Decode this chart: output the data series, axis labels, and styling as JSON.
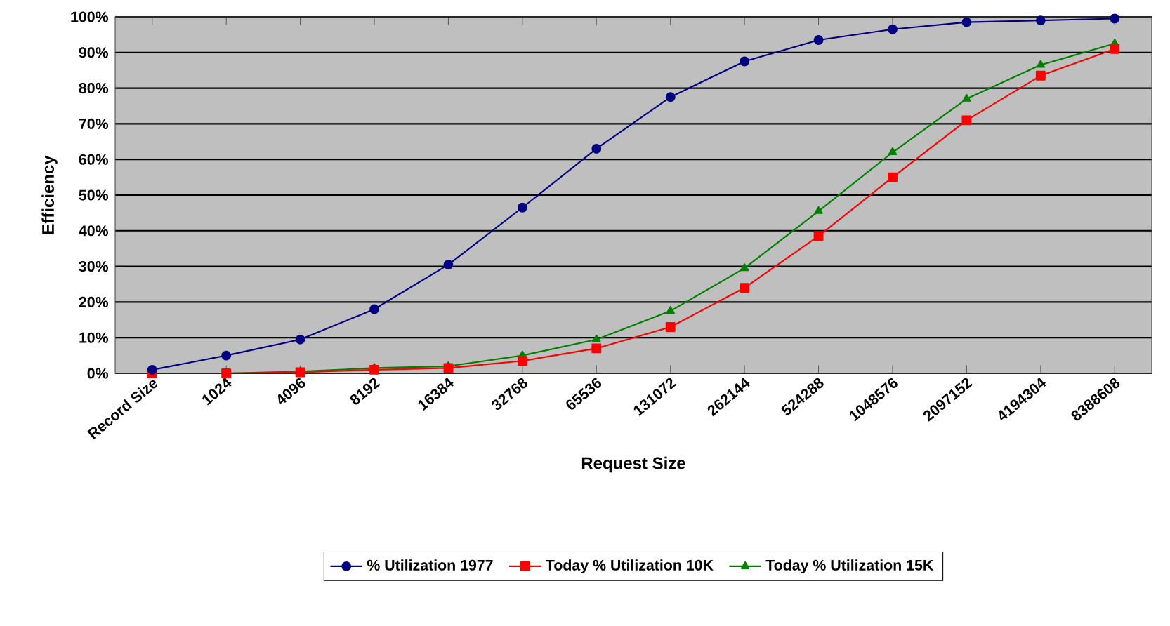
{
  "chart_data": {
    "type": "line",
    "xlabel": "Request Size",
    "ylabel": "Efficiency",
    "categories": [
      "Record Size",
      "1024",
      "4096",
      "8192",
      "16384",
      "32768",
      "65536",
      "131072",
      "262144",
      "524288",
      "1048576",
      "2097152",
      "4194304",
      "8388608"
    ],
    "series": [
      {
        "name": "% Utilization 1977",
        "color": "#000080",
        "marker": "circle",
        "values": [
          1,
          5,
          9.5,
          18,
          30.5,
          46.5,
          63,
          77.5,
          87.5,
          93.5,
          96.5,
          98.5,
          99,
          99.5
        ]
      },
      {
        "name": "Today % Utilization 10K",
        "color": "#ff0000",
        "marker": "square",
        "values": [
          0,
          0,
          0.3,
          1,
          1.5,
          3.5,
          7,
          13,
          24,
          38.5,
          55,
          71,
          83.5,
          91
        ]
      },
      {
        "name": "Today % Utilization 15K",
        "color": "#008000",
        "marker": "triangle",
        "values": [
          0,
          0,
          0.5,
          1.5,
          2,
          5,
          9.5,
          17.5,
          29.5,
          45.5,
          62,
          77,
          86.5,
          92.5
        ]
      }
    ],
    "ylim": [
      0,
      100
    ],
    "yticks": [
      {
        "value": 0,
        "label": "0%"
      },
      {
        "value": 10,
        "label": "10%"
      },
      {
        "value": 20,
        "label": "20%"
      },
      {
        "value": 30,
        "label": "30%"
      },
      {
        "value": 40,
        "label": "40%"
      },
      {
        "value": 50,
        "label": "50%"
      },
      {
        "value": 60,
        "label": "60%"
      },
      {
        "value": 70,
        "label": "70%"
      },
      {
        "value": 80,
        "label": "80%"
      },
      {
        "value": 90,
        "label": "90%"
      },
      {
        "value": 100,
        "label": "100%"
      }
    ],
    "grid": "y",
    "legend": "bottom"
  }
}
